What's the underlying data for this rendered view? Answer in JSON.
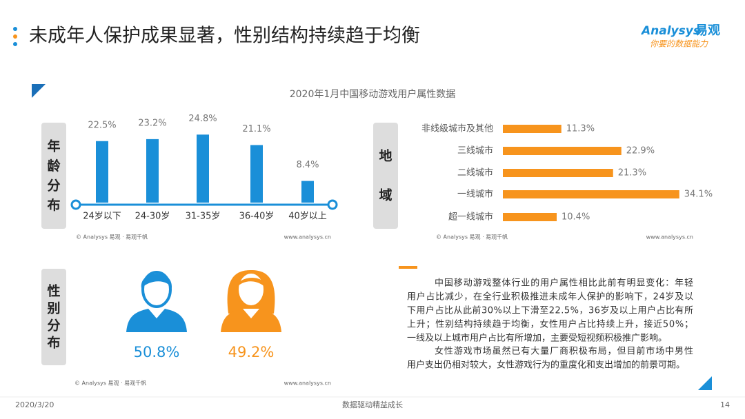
{
  "header": {
    "title": "未成年人保护成果显著，性别结构持续趋于均衡",
    "logo_name": "Analysys",
    "logo_cn": "易观",
    "slogan": "你要的数据能力"
  },
  "chart_title": "2020年1月中国移动游戏用户属性数据",
  "chart_data": [
    {
      "type": "bar",
      "label": "年龄分布",
      "categories": [
        "24岁以下",
        "24-30岁",
        "31-35岁",
        "36-40岁",
        "40岁以上"
      ],
      "values": [
        22.5,
        23.2,
        24.8,
        21.1,
        8.4
      ],
      "value_labels": [
        "22.5%",
        "23.2%",
        "24.8%",
        "21.1%",
        "8.4%"
      ],
      "color": "#1a8fd8",
      "source": "© Analysys 易观 · 易观千帆",
      "url": "www.analysys.cn"
    },
    {
      "type": "hbar",
      "label": "地域",
      "categories": [
        "非线级城市及其他",
        "三线城市",
        "二线城市",
        "一线城市",
        "超一线城市"
      ],
      "values": [
        11.3,
        22.9,
        21.3,
        34.1,
        10.4
      ],
      "value_labels": [
        "11.3%",
        "22.9%",
        "21.3%",
        "34.1%",
        "10.4%"
      ],
      "color": "#f7941d",
      "source": "© Analysys 易观 · 易观千帆",
      "url": "www.analysys.cn"
    },
    {
      "type": "pictograph",
      "label": "性别分布",
      "values": [
        50.8,
        49.2
      ],
      "value_labels": [
        "50.8%",
        "49.2%"
      ],
      "colors": [
        "#1a8fd8",
        "#f7941d"
      ],
      "source": "© Analysys 易观 · 易观千帆",
      "url": "www.analysys.cn"
    }
  ],
  "text_lines": [
    "中国移动游戏整体行业的用户属性相比此前有明显变化：年轻",
    "用户占比减少，在全行业积极推进未成年人保护的影响下，24岁及以",
    "下用户占比从此前30%以上下滑至22.5%，36岁及以上用户占比有所",
    "上升；性别结构持续趋于均衡，女性用户占比持续上升，接近50%；",
    "一线及以上城市用户占比有所增加，主要受短视频积极推广影响。",
    "女性游戏市场虽然已有大量厂商积极布局，但目前市场中男性",
    "用户支出仍相对较大，女性游戏行为的重度化和支出增加的前景可期。"
  ],
  "footer": {
    "date": "2020/3/20",
    "slogan": "数据驱动精益成长",
    "page": "14"
  }
}
